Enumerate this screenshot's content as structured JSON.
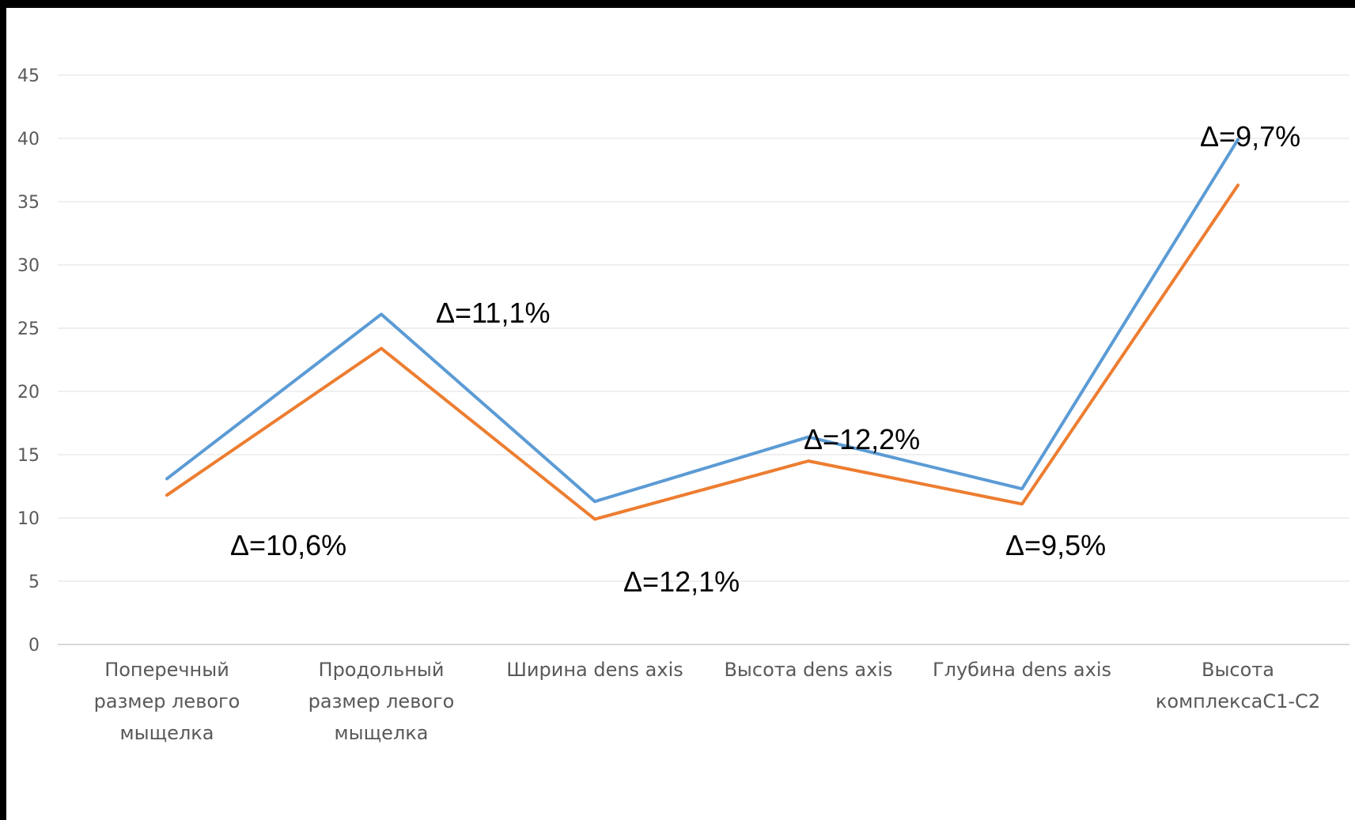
{
  "chart_data": {
    "type": "line",
    "title": "",
    "xlabel": "",
    "ylabel": "",
    "ylim": [
      0,
      45
    ],
    "yticks": [
      "0",
      "5",
      "10",
      "15",
      "20",
      "25",
      "30",
      "35",
      "40",
      "45"
    ],
    "grid": true,
    "categories": [
      [
        "Поперечный",
        "размер левого",
        "мыщелка"
      ],
      [
        "Продольный",
        "размер левого",
        "мыщелка"
      ],
      [
        "Ширина dens axis"
      ],
      [
        "Высота dens axis"
      ],
      [
        "Глубина dens axis"
      ],
      [
        "Высота",
        "комплексаС1-С2"
      ]
    ],
    "series": [
      {
        "color": "#5B9BD5",
        "values": [
          13.1,
          26.1,
          11.3,
          16.4,
          12.3,
          39.9
        ]
      },
      {
        "color": "#ED7D31",
        "values": [
          11.8,
          23.4,
          9.9,
          14.5,
          11.1,
          36.3
        ]
      }
    ],
    "annotations": [
      "Δ=10,6%",
      "Δ=11,1%",
      "Δ=12,1%",
      "Δ=12,2%",
      "Δ=9,5%",
      "Δ=9,7%"
    ]
  }
}
